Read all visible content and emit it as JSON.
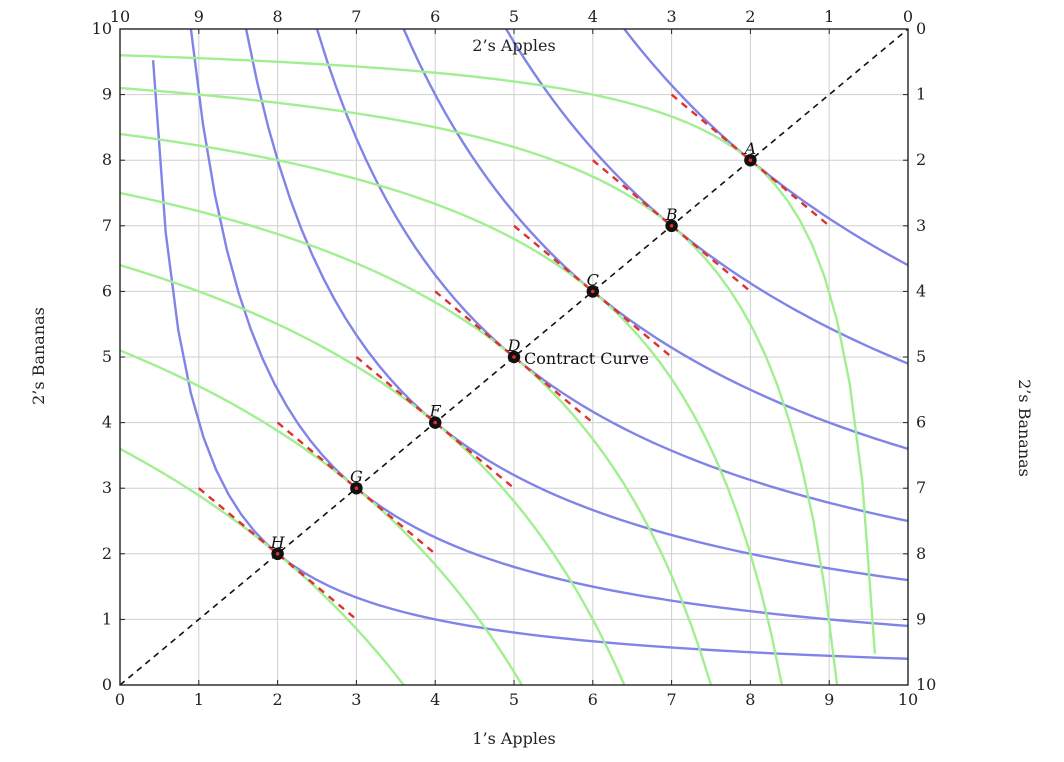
{
  "chart_data": {
    "type": "line",
    "title": "",
    "xlabel": "1’s Apples",
    "ylabel_left": "2’s Bananas",
    "ylabel_right": "2’s Bananas",
    "top_title": "2’s Apples",
    "xlim": [
      0,
      10
    ],
    "ylim": [
      0,
      10
    ],
    "x_ticks": [
      "0",
      "1",
      "2",
      "3",
      "4",
      "5",
      "6",
      "7",
      "8",
      "9",
      "10"
    ],
    "y_ticks": [
      "0",
      "1",
      "2",
      "3",
      "4",
      "5",
      "6",
      "7",
      "8",
      "9",
      "10"
    ],
    "top_ticks": [
      "10",
      "9",
      "8",
      "7",
      "6",
      "5",
      "4",
      "3",
      "2",
      "1",
      "0"
    ],
    "right_ticks": [
      "0",
      "1",
      "2",
      "3",
      "4",
      "5",
      "6",
      "7",
      "8",
      "9",
      "10"
    ],
    "grid": true,
    "colors": {
      "person1": "#8084e8",
      "person2": "#a2ef92",
      "tangent": "#e0312e",
      "contract": "#111111",
      "grid": "#cfcfcf",
      "axes": "#222222"
    },
    "contract_curve": {
      "label": "Contract Curve",
      "x": [
        0,
        10
      ],
      "y": [
        0,
        10
      ]
    },
    "points": [
      {
        "label": "A",
        "x": 8,
        "y": 8
      },
      {
        "label": "B",
        "x": 7,
        "y": 7
      },
      {
        "label": "C",
        "x": 6,
        "y": 6
      },
      {
        "label": "D",
        "x": 5,
        "y": 5
      },
      {
        "label": "F",
        "x": 4,
        "y": 4
      },
      {
        "label": "G",
        "x": 3,
        "y": 3
      },
      {
        "label": "H",
        "x": 2,
        "y": 2
      }
    ],
    "tangent_lines": [
      {
        "x": [
          7,
          9
        ],
        "y": [
          9,
          7
        ]
      },
      {
        "x": [
          6,
          8
        ],
        "y": [
          8,
          6
        ]
      },
      {
        "x": [
          5,
          7
        ],
        "y": [
          7,
          5
        ]
      },
      {
        "x": [
          4,
          6
        ],
        "y": [
          6,
          4
        ]
      },
      {
        "x": [
          3,
          5
        ],
        "y": [
          5,
          3
        ]
      },
      {
        "x": [
          2,
          4
        ],
        "y": [
          4,
          2
        ]
      },
      {
        "x": [
          1,
          3
        ],
        "y": [
          3,
          1
        ]
      }
    ],
    "person1_indifference_curves": [
      {
        "level": 64,
        "form": "xy = k",
        "x_range": [
          6.4,
          10
        ]
      },
      {
        "level": 49,
        "form": "xy = k",
        "x_range": [
          4.9,
          10
        ]
      },
      {
        "level": 36,
        "form": "xy = k",
        "x_range": [
          3.6,
          10
        ]
      },
      {
        "level": 25,
        "form": "xy = k",
        "x_range": [
          2.5,
          10
        ]
      },
      {
        "level": 16,
        "form": "xy = k",
        "x_range": [
          1.6,
          10
        ]
      },
      {
        "level": 9,
        "form": "xy = k",
        "x_range": [
          0.9,
          10
        ]
      },
      {
        "level": 4,
        "form": "xy = k",
        "x_range": [
          0.42,
          10
        ]
      }
    ],
    "person2_indifference_curves": [
      {
        "level": 4,
        "form": "(10-x)(10-y) = k",
        "x_range": [
          0,
          9.58
        ]
      },
      {
        "level": 9,
        "form": "(10-x)(10-y) = k",
        "x_range": [
          0,
          9.1
        ]
      },
      {
        "level": 16,
        "form": "(10-x)(10-y) = k",
        "x_range": [
          0,
          8.4
        ]
      },
      {
        "level": 25,
        "form": "(10-x)(10-y) = k",
        "x_range": [
          0,
          7.5
        ]
      },
      {
        "level": 36,
        "form": "(10-x)(10-y) = k",
        "x_range": [
          0,
          6.4
        ]
      },
      {
        "level": 49,
        "form": "(10-x)(10-y) = k",
        "x_range": [
          0,
          5.1
        ]
      },
      {
        "level": 64,
        "form": "(10-x)(10-y) = k",
        "x_range": [
          0,
          3.6
        ]
      }
    ]
  }
}
